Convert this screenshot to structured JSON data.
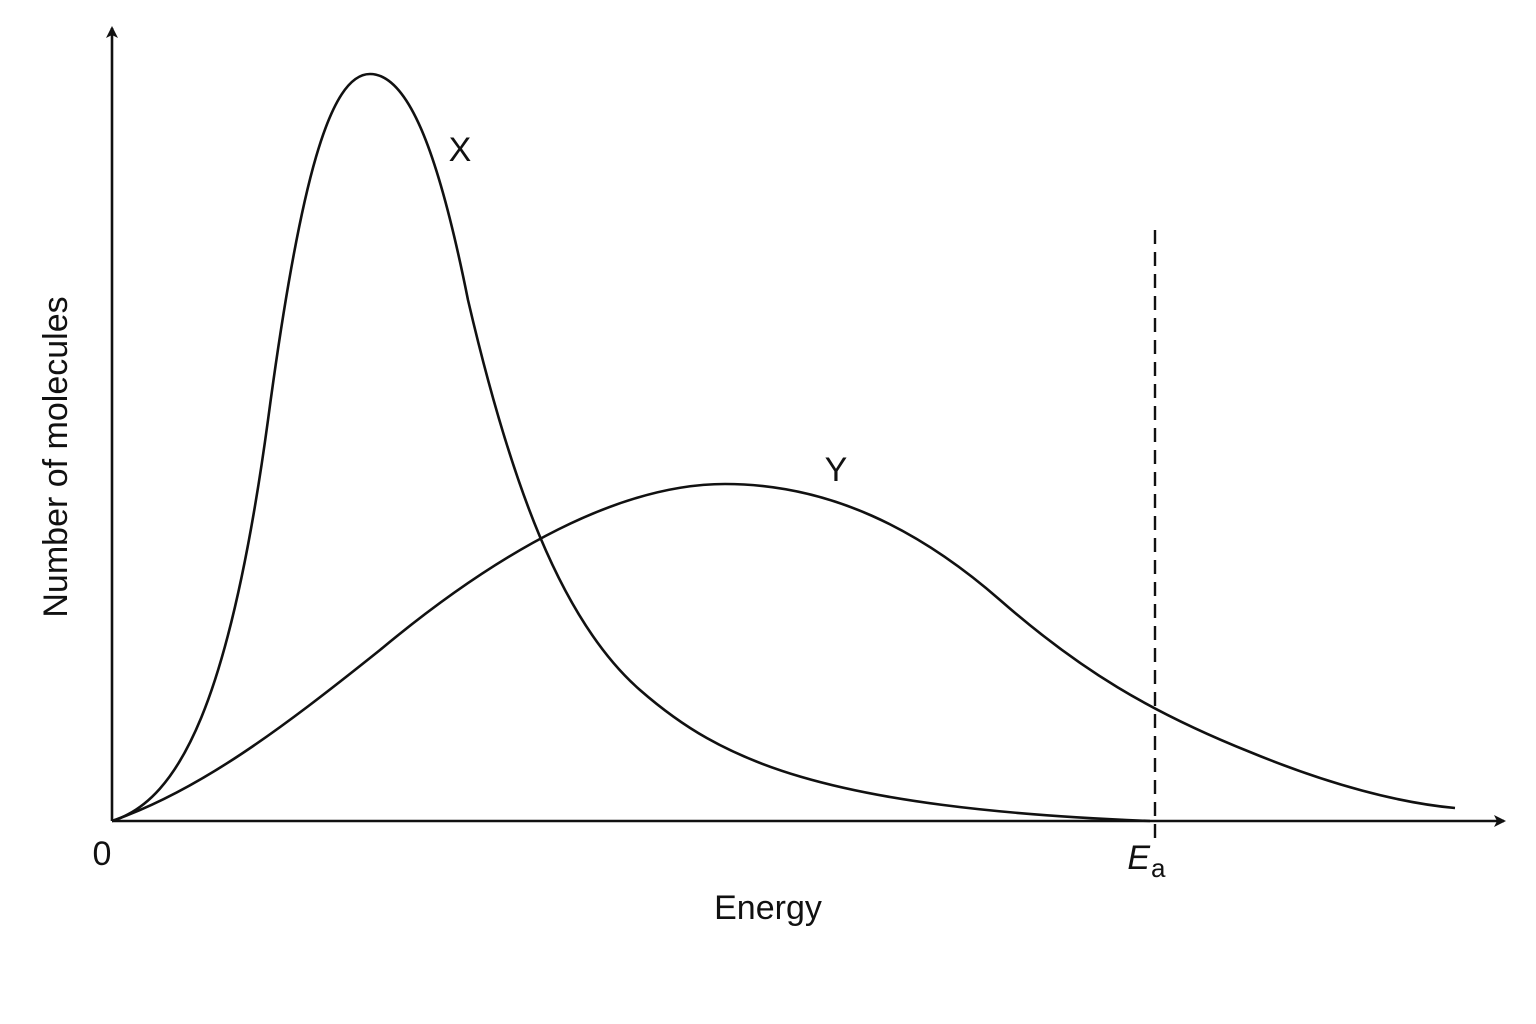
{
  "axes": {
    "y_label": "Number of molecules",
    "x_label": "Energy",
    "origin": "0"
  },
  "curves": [
    {
      "label": "X"
    },
    {
      "label": "Y"
    }
  ],
  "marker": {
    "main": "E",
    "subscript": "a"
  }
}
